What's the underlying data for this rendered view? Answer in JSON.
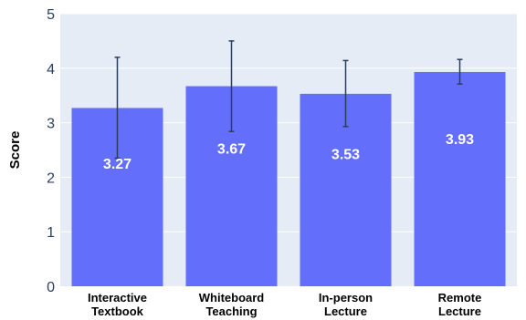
{
  "chart_data": {
    "type": "bar",
    "categories": [
      [
        "Interactive",
        "Textbook"
      ],
      [
        "Whiteboard",
        "Teaching"
      ],
      [
        "In-person",
        "Lecture"
      ],
      [
        "Remote",
        "Lecture"
      ]
    ],
    "values": [
      3.27,
      3.67,
      3.53,
      3.93
    ],
    "value_labels": [
      "3.27",
      "3.67",
      "3.53",
      "3.93"
    ],
    "error_bars": [
      {
        "low": 2.35,
        "high": 4.2
      },
      {
        "low": 2.84,
        "high": 4.5
      },
      {
        "low": 2.93,
        "high": 4.14
      },
      {
        "low": 3.71,
        "high": 4.16
      }
    ],
    "title": "",
    "xlabel": "",
    "ylabel": "Score",
    "ylim": [
      0,
      5
    ],
    "yticks": [
      "0",
      "1",
      "2",
      "3",
      "4",
      "5"
    ],
    "grid": true,
    "colors": {
      "bar": "#636efa",
      "plot_bg": "#e5ecf6",
      "grid": "#ffffff",
      "error_bar": "#2a3f5f"
    }
  }
}
